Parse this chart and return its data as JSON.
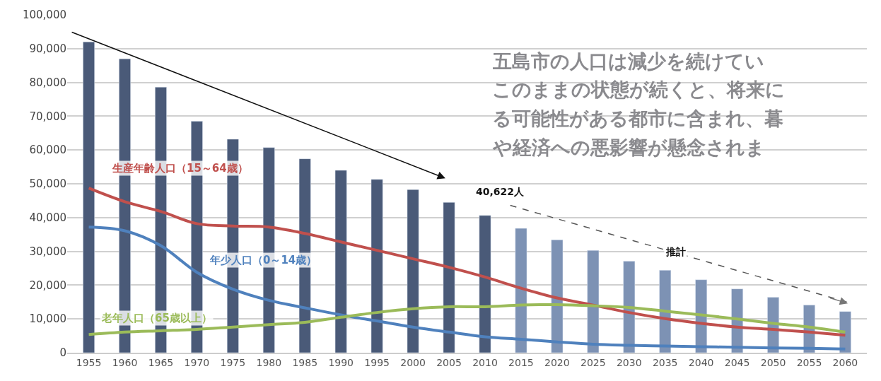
{
  "chart_data": {
    "type": "bar",
    "categories": [
      "1955",
      "1960",
      "1965",
      "1970",
      "1975",
      "1980",
      "1985",
      "1990",
      "1995",
      "2000",
      "2005",
      "2010",
      "2015",
      "2020",
      "2025",
      "2030",
      "2035",
      "2040",
      "2045",
      "2050",
      "2055",
      "2060"
    ],
    "series": [
      {
        "colors": [
          "#4a5a78",
          "#4a5a78",
          "#4a5a78",
          "#4a5a78",
          "#4a5a78",
          "#4a5a78",
          "#4a5a78",
          "#4a5a78",
          "#4a5a78",
          "#4a5a78",
          "#4a5a78",
          "#4a5a78",
          "#7d92b4",
          "#7d92b4",
          "#7d92b4",
          "#7d92b4",
          "#7d92b4",
          "#7d92b4",
          "#7d92b4",
          "#7d92b4",
          "#7d92b4",
          "#7d92b4"
        ],
        "values": [
          92000,
          87000,
          78600,
          68500,
          63200,
          60700,
          57400,
          54000,
          51300,
          48300,
          44500,
          40622,
          36800,
          33400,
          30300,
          27100,
          24400,
          21600,
          18900,
          16400,
          14100,
          12200
        ]
      },
      {
        "type": "line",
        "name": "生産年齢人口（15～64歳）",
        "color": "#c0504d",
        "values": [
          48700,
          44700,
          41800,
          38200,
          37500,
          37200,
          35300,
          32800,
          30300,
          27800,
          25300,
          22400,
          19100,
          16200,
          14100,
          11900,
          10100,
          8700,
          7600,
          6900,
          6100,
          5200
        ]
      },
      {
        "type": "line",
        "name": "年少人口（0～14歳）",
        "color": "#4f81bd",
        "values": [
          37200,
          36100,
          31700,
          23800,
          18800,
          15500,
          13300,
          11200,
          9400,
          7600,
          6100,
          4700,
          4000,
          3200,
          2500,
          2200,
          2000,
          1800,
          1600,
          1400,
          1300,
          1100
        ]
      },
      {
        "type": "line",
        "name": "老年人口（65歳以上）",
        "color": "#9bbb59",
        "values": [
          5400,
          6100,
          6500,
          6900,
          7600,
          8300,
          9000,
          10500,
          11900,
          13000,
          13600,
          13600,
          14100,
          14200,
          13900,
          13400,
          12300,
          11200,
          10000,
          8700,
          7600,
          6100
        ]
      }
    ],
    "ylim": [
      0,
      100000
    ],
    "yticks": [
      {
        "value": 0,
        "label": "0"
      },
      {
        "value": 10000,
        "label": "10,000"
      },
      {
        "value": 20000,
        "label": "20,000"
      },
      {
        "value": 30000,
        "label": "30,000"
      },
      {
        "value": 40000,
        "label": "40,000"
      },
      {
        "value": 50000,
        "label": "50,000"
      },
      {
        "value": 60000,
        "label": "60,000"
      },
      {
        "value": 70000,
        "label": "70,000"
      },
      {
        "value": 80000,
        "label": "80,000"
      },
      {
        "value": 90000,
        "label": "90,000"
      },
      {
        "value": 100000,
        "label": "100,000"
      }
    ],
    "grid": "y",
    "legend": false,
    "annotations": [
      "五島市の人口は減少を続けてい",
      "このままの状態が続くと、将来に",
      "る可能性がある都市に含まれ、暮",
      "や経済への悪影響が懸念されま",
      {
        "text": "40,622人",
        "x": "2010",
        "y": 40622
      },
      "推計"
    ]
  }
}
